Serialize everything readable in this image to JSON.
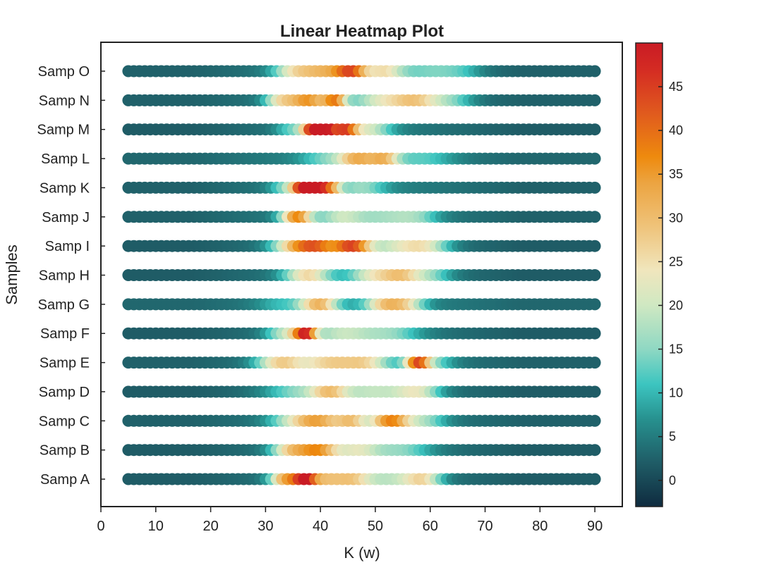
{
  "chart_data": {
    "type": "heatmap",
    "title": "Linear Heatmap Plot",
    "xlabel": "K (w)",
    "ylabel": "Samples",
    "xlim": [
      0,
      95
    ],
    "x_ticks": [
      "0",
      "10",
      "20",
      "30",
      "40",
      "50",
      "60",
      "70",
      "80",
      "90"
    ],
    "x_tick_values": [
      0,
      10,
      20,
      30,
      40,
      50,
      60,
      70,
      80,
      90
    ],
    "x_range": [
      5,
      90
    ],
    "x_step": 1,
    "samples": [
      "Samp A",
      "Samp B",
      "Samp C",
      "Samp D",
      "Samp E",
      "Samp F",
      "Samp G",
      "Samp H",
      "Samp I",
      "Samp J",
      "Samp K",
      "Samp L",
      "Samp M",
      "Samp N",
      "Samp O"
    ],
    "colorbar": {
      "ticks": [
        "0",
        "5",
        "10",
        "15",
        "20",
        "25",
        "30",
        "35",
        "40",
        "45"
      ],
      "tick_values": [
        0,
        5,
        10,
        15,
        20,
        25,
        30,
        35,
        40,
        45
      ],
      "range": [
        -3,
        50
      ]
    },
    "colormap": [
      {
        "v": -3,
        "c": "#0f2b3f"
      },
      {
        "v": 2,
        "c": "#1f5c66"
      },
      {
        "v": 7,
        "c": "#27918f"
      },
      {
        "v": 11,
        "c": "#3cc5c0"
      },
      {
        "v": 15,
        "c": "#8fd8c3"
      },
      {
        "v": 20,
        "c": "#cfe8c2"
      },
      {
        "v": 24,
        "c": "#f0e6bd"
      },
      {
        "v": 29,
        "c": "#efc37a"
      },
      {
        "v": 34,
        "c": "#eca441"
      },
      {
        "v": 37,
        "c": "#ee8a0e"
      },
      {
        "v": 42,
        "c": "#e05a1e"
      },
      {
        "v": 47,
        "c": "#d42b23"
      },
      {
        "v": 50,
        "c": "#c91b24"
      }
    ],
    "series": [
      {
        "name": "Samp A",
        "baseline": 2,
        "peaks": [
          [
            34,
            30,
            2
          ],
          [
            37.5,
            36,
            1.5
          ],
          [
            41,
            22,
            2.5
          ],
          [
            46,
            20,
            2.5
          ],
          [
            59,
            20,
            2.5
          ],
          [
            53,
            14,
            4
          ]
        ]
      },
      {
        "name": "Samp B",
        "baseline": 2,
        "peaks": [
          [
            35,
            24,
            2.5
          ],
          [
            40,
            30,
            2.5
          ],
          [
            47,
            17,
            3
          ],
          [
            55,
            12,
            4
          ]
        ]
      },
      {
        "name": "Samp C",
        "baseline": 2.5,
        "peaks": [
          [
            40,
            28,
            3
          ],
          [
            46,
            22,
            2
          ],
          [
            53,
            33,
            2.5
          ],
          [
            59,
            14,
            3
          ],
          [
            35,
            14,
            3
          ]
        ]
      },
      {
        "name": "Samp D",
        "baseline": 2,
        "peaks": [
          [
            42,
            22,
            2.5
          ],
          [
            50,
            15,
            4
          ],
          [
            58,
            19,
            3
          ],
          [
            36,
            12,
            4
          ]
        ]
      },
      {
        "name": "Samp E",
        "baseline": 2.5,
        "peaks": [
          [
            33,
            24,
            3
          ],
          [
            42,
            23,
            4
          ],
          [
            49,
            18,
            3
          ],
          [
            58,
            32,
            1.5
          ],
          [
            60,
            14,
            3
          ]
        ]
      },
      {
        "name": "Samp F",
        "baseline": 2,
        "peaks": [
          [
            37.5,
            38,
            1.5
          ],
          [
            34,
            16,
            2.5
          ],
          [
            44,
            15,
            4
          ],
          [
            53,
            12,
            4
          ]
        ]
      },
      {
        "name": "Samp G",
        "baseline": 3,
        "peaks": [
          [
            40,
            28,
            2.5
          ],
          [
            52,
            22,
            2.5
          ],
          [
            56,
            19,
            2.5
          ],
          [
            33,
            8,
            3
          ]
        ]
      },
      {
        "name": "Samp H",
        "baseline": 2,
        "peaks": [
          [
            38,
            23,
            3
          ],
          [
            50,
            18,
            3
          ],
          [
            55,
            20,
            2.5
          ],
          [
            60,
            13,
            3
          ]
        ]
      },
      {
        "name": "Samp I",
        "baseline": 2,
        "peaks": [
          [
            36,
            27,
            3
          ],
          [
            40,
            26,
            2.5
          ],
          [
            46,
            38,
            2.5
          ],
          [
            55,
            17,
            4
          ],
          [
            60,
            14,
            3
          ]
        ]
      },
      {
        "name": "Samp J",
        "baseline": 2.5,
        "peaks": [
          [
            36,
            34,
            2
          ],
          [
            44,
            15,
            3
          ],
          [
            52,
            12,
            4
          ],
          [
            58,
            11,
            3
          ]
        ]
      },
      {
        "name": "Samp K",
        "baseline": 2.5,
        "peaks": [
          [
            39,
            47,
            1.5
          ],
          [
            37,
            35,
            1.5
          ],
          [
            42,
            29,
            1.5
          ],
          [
            48,
            12,
            3
          ],
          [
            34,
            12,
            2
          ]
        ]
      },
      {
        "name": "Samp L",
        "baseline": 3,
        "peaks": [
          [
            47,
            27,
            2.5
          ],
          [
            52,
            24,
            2
          ],
          [
            41,
            10,
            3
          ],
          [
            59,
            10,
            4
          ]
        ]
      },
      {
        "name": "Samp M",
        "baseline": 2,
        "peaks": [
          [
            41,
            42,
            2
          ],
          [
            39,
            31,
            1.5
          ],
          [
            45,
            30,
            1.5
          ],
          [
            49,
            17,
            3
          ],
          [
            35,
            10,
            2
          ]
        ]
      },
      {
        "name": "Samp N",
        "baseline": 2.5,
        "peaks": [
          [
            38,
            32,
            2.5
          ],
          [
            43,
            30,
            1.5
          ],
          [
            33,
            20,
            2
          ],
          [
            52,
            18,
            4
          ],
          [
            58,
            20,
            3
          ],
          [
            64,
            12,
            3
          ]
        ]
      },
      {
        "name": "Samp O",
        "baseline": 2.5,
        "peaks": [
          [
            41,
            27,
            4
          ],
          [
            46,
            28,
            2
          ],
          [
            52,
            20,
            2.5
          ],
          [
            35,
            14,
            2.5
          ],
          [
            60,
            11,
            4
          ],
          [
            66,
            8,
            3
          ]
        ]
      }
    ]
  }
}
